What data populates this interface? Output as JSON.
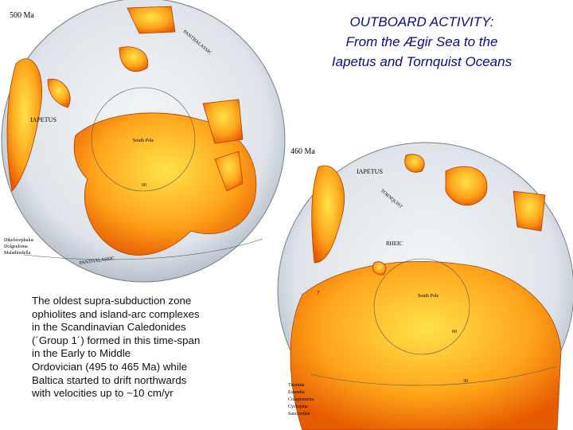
{
  "title": [
    "OUTBOARD ACTIVITY:",
    "From the Ægir Sea to the",
    "Iapetus and Tornquist Oceans"
  ],
  "map_500": {
    "age": "500 Ma",
    "labels": [
      "IAPETUS",
      "PANTHALASSIC",
      "PANTHALASSIC",
      "South Pole",
      "60"
    ],
    "legend": [
      "Dikelocephalus",
      "Dolgeuloma",
      "Maladioidella"
    ]
  },
  "map_460": {
    "age": "460 Ma",
    "labels": [
      "IAPETUS",
      "TORNQUIST",
      "RHEIC",
      "South Pole",
      "60",
      "30",
      "?"
    ],
    "legend": [
      "Tissintia",
      "Estandia",
      "Colaptomena",
      "Cyclopina",
      "Saucrorthis"
    ]
  },
  "note": [
    "The oldest supra-subduction zone",
    "ophiolites and island-arc complexes",
    "in the Scandinavian Caledonides",
    "(´Group 1´) formed in this time-span",
    "in the Early to Middle",
    "Ordovician (495 to 465 Ma) while",
    "Baltica started to drift northwards",
    "with velocities up to ~10 cm/yr"
  ]
}
